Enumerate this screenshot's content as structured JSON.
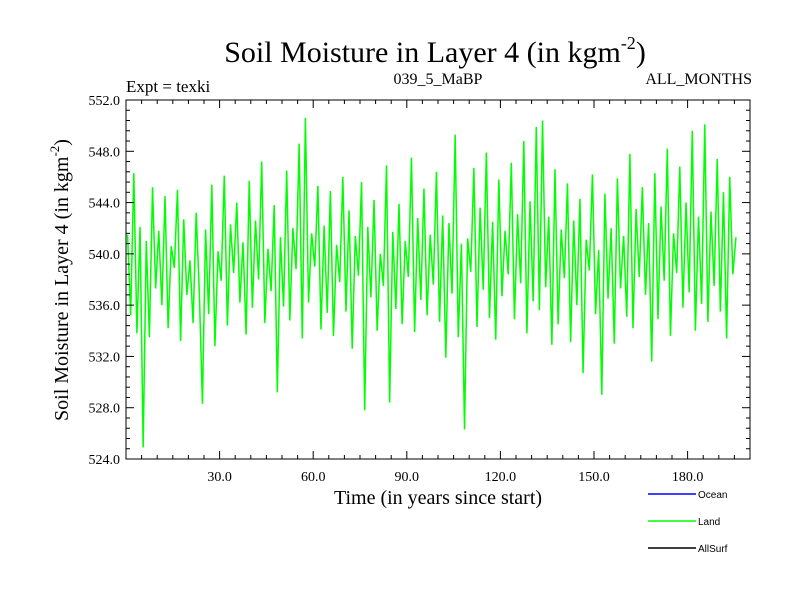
{
  "header": {
    "title_main": "Soil Moisture in Layer 4 (in kgm",
    "title_sup": "-2",
    "title_close": ")",
    "expt": "Expt = texki",
    "run_id": "039_5_MaBP",
    "months": "ALL_MONTHS"
  },
  "chart_data": {
    "type": "line",
    "title": "Soil Moisture in Layer 4 (in kgm-2)",
    "xlabel": "Time (in years since start)",
    "ylabel": "Soil Moisture in Layer 4 (in kgm-2)",
    "ylabel_main": "Soil Moisture in Layer 4 (in kgm",
    "ylabel_sup": "-2",
    "ylabel_close": ")",
    "xlim": [
      0,
      200
    ],
    "ylim": [
      524.0,
      552.0
    ],
    "x_ticks": [
      30,
      60,
      90,
      120,
      150,
      180
    ],
    "x_tick_labels": [
      "30.0",
      "60.0",
      "90.0",
      "120.0",
      "150.0",
      "180.0"
    ],
    "y_ticks": [
      524,
      528,
      532,
      536,
      540,
      544,
      548,
      552
    ],
    "y_tick_labels": [
      "524.0",
      "528.0",
      "532.0",
      "536.0",
      "540.0",
      "544.0",
      "548.0",
      "552.0"
    ],
    "grid": false,
    "legend_placement": "bottom-right, outside plot",
    "series": [
      {
        "name": "Ocean",
        "color": "#0000ff",
        "values": []
      },
      {
        "name": "Land",
        "color": "#00ff00",
        "x_start": 0.5,
        "x_step": 1,
        "values": [
          541.5,
          535.2,
          546.3,
          533.8,
          542.1,
          524.9,
          541.0,
          533.5,
          545.2,
          537.3,
          541.8,
          536.0,
          544.5,
          534.2,
          540.6,
          538.9,
          545.0,
          533.2,
          542.7,
          536.8,
          539.5,
          534.6,
          543.2,
          537.0,
          528.3,
          541.9,
          535.3,
          545.4,
          532.8,
          540.2,
          537.9,
          546.1,
          534.4,
          542.3,
          538.5,
          544.0,
          536.2,
          540.9,
          533.7,
          545.7,
          535.8,
          542.6,
          538.0,
          547.2,
          534.6,
          540.4,
          537.1,
          543.8,
          529.2,
          541.3,
          535.9,
          546.5,
          534.8,
          542.0,
          538.8,
          548.6,
          533.4,
          550.6,
          536.2,
          541.6,
          539.0,
          545.3,
          534.1,
          542.2,
          535.4,
          544.9,
          533.6,
          540.7,
          537.8,
          546.0,
          535.5,
          543.4,
          532.6,
          541.4,
          538.3,
          545.6,
          527.8,
          542.1,
          536.6,
          544.2,
          534.0,
          540.0,
          537.5,
          546.9,
          528.4,
          541.7,
          535.7,
          543.9,
          534.5,
          541.0,
          538.2,
          547.5,
          533.9,
          542.8,
          536.4,
          545.1,
          535.2,
          541.5,
          537.6,
          546.4,
          534.7,
          543.0,
          531.9,
          542.4,
          536.9,
          549.3,
          533.5,
          540.8,
          526.3,
          541.2,
          538.6,
          546.7,
          534.3,
          543.6,
          537.2,
          547.9,
          535.0,
          542.5,
          533.3,
          545.8,
          536.7,
          541.8,
          538.4,
          547.1,
          534.9,
          543.1,
          537.7,
          548.8,
          533.8,
          544.1,
          536.3,
          549.9,
          535.6,
          550.4,
          537.4,
          542.9,
          532.9,
          546.6,
          534.5,
          541.9,
          538.1,
          545.5,
          533.1,
          542.6,
          536.0,
          544.3,
          530.7,
          541.1,
          538.7,
          546.2,
          535.3,
          540.3,
          529.0,
          544.7,
          536.5,
          542.0,
          533.0,
          545.9,
          537.3,
          541.4,
          535.1,
          547.8,
          534.2,
          543.5,
          538.2,
          545.2,
          536.8,
          542.4,
          531.6,
          546.3,
          534.9,
          543.7,
          537.9,
          548.2,
          533.6,
          541.6,
          538.5,
          546.8,
          535.8,
          544.0,
          537.0,
          549.6,
          534.0,
          542.9,
          536.1,
          550.1,
          534.7,
          543.3,
          537.5,
          547.4,
          535.5,
          544.8,
          533.4,
          546.0,
          538.4,
          541.3
        ]
      },
      {
        "name": "AllSurf",
        "color": "#000000",
        "values": []
      }
    ]
  },
  "legend": [
    {
      "label": "Ocean",
      "color": "#0000ff"
    },
    {
      "label": "Land",
      "color": "#00ff00"
    },
    {
      "label": "AllSurf",
      "color": "#000000"
    }
  ]
}
